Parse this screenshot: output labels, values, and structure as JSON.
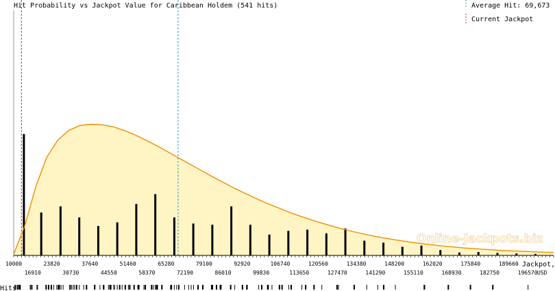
{
  "chart_data": {
    "type": "bar",
    "title": "Hit Probability vs Jackpot Value for Caribbean Holdem (541 hits)",
    "legend": {
      "average_label": "Average Hit: 69,673",
      "current_label": "Current Jackpot",
      "placement": "top-right"
    },
    "xlabel": "Jackpot,",
    "xlabel_unit": "USD",
    "rug_label": "Hits",
    "watermark": "Online-Jackpots.biz",
    "xlim": [
      10000,
      206000
    ],
    "ylim": [
      0,
      1
    ],
    "ticks_top": [
      "10000",
      "23820",
      "37640",
      "51460",
      "65280",
      "79100",
      "92920",
      "106740",
      "120560",
      "134380",
      "148200",
      "162020",
      "175840",
      "189660"
    ],
    "ticks_top_values": [
      10000,
      23820,
      37640,
      51460,
      65280,
      79100,
      92920,
      106740,
      120560,
      134380,
      148200,
      162020,
      175840,
      189660
    ],
    "ticks_bottom": [
      "16910",
      "30730",
      "44550",
      "58370",
      "72190",
      "86010",
      "99830",
      "113650",
      "127470",
      "141290",
      "155110",
      "168930",
      "182750",
      "196570"
    ],
    "ticks_bottom_values": [
      16910,
      30730,
      44550,
      58370,
      72190,
      86010,
      99830,
      113650,
      127470,
      141290,
      155110,
      168930,
      182750,
      196570
    ],
    "average_hit": 69673,
    "current_jackpot": 12800,
    "bars": {
      "x": [
        13700,
        20000,
        27000,
        33800,
        40700,
        47600,
        54500,
        61400,
        68300,
        75200,
        82100,
        89000,
        95900,
        102800,
        109700,
        116600,
        123500,
        130400,
        137300,
        144200,
        151100,
        158000,
        164900,
        171800,
        178700,
        185600,
        192500,
        199400
      ],
      "y": [
        0.495,
        0.175,
        0.2,
        0.155,
        0.12,
        0.135,
        0.21,
        0.25,
        0.155,
        0.13,
        0.125,
        0.2,
        0.125,
        0.085,
        0.1,
        0.105,
        0.09,
        0.11,
        0.06,
        0.052,
        0.035,
        0.04,
        0.022,
        0.012,
        0.014,
        0.01,
        0.008,
        0.006
      ]
    },
    "curve": {
      "x": [
        10000,
        14000,
        18000,
        22000,
        26000,
        30000,
        34000,
        38000,
        42000,
        46000,
        50000,
        54000,
        58000,
        62000,
        66000,
        70000,
        74000,
        78000,
        82000,
        86000,
        90000,
        94000,
        98000,
        102000,
        106000,
        110000,
        114000,
        118000,
        122000,
        126000,
        130000,
        134000,
        138000,
        142000,
        146000,
        150000,
        154000,
        158000,
        162000,
        166000,
        170000,
        174000,
        178000,
        182000,
        186000,
        190000,
        194000,
        198000,
        202000,
        206000
      ],
      "y": [
        0.005,
        0.12,
        0.28,
        0.4,
        0.47,
        0.51,
        0.53,
        0.535,
        0.533,
        0.525,
        0.51,
        0.492,
        0.47,
        0.447,
        0.422,
        0.397,
        0.372,
        0.347,
        0.322,
        0.298,
        0.275,
        0.253,
        0.232,
        0.212,
        0.194,
        0.176,
        0.16,
        0.145,
        0.131,
        0.118,
        0.106,
        0.095,
        0.085,
        0.076,
        0.068,
        0.061,
        0.054,
        0.048,
        0.043,
        0.038,
        0.034,
        0.03,
        0.027,
        0.024,
        0.021,
        0.019,
        0.017,
        0.015,
        0.013,
        0.012
      ]
    },
    "rug_density": [
      6,
      4,
      3,
      5,
      4,
      5,
      3,
      4,
      5,
      4,
      4,
      3,
      4,
      4,
      3,
      4,
      3,
      3,
      3,
      3,
      2,
      3,
      2,
      3,
      2,
      2,
      2,
      1,
      1,
      1,
      1,
      1,
      1,
      1,
      1,
      1,
      0,
      1,
      1,
      0,
      1,
      0,
      1,
      0,
      1,
      0,
      0,
      1,
      0,
      0
    ],
    "colors": {
      "curve": "#f08c00",
      "fill": "#fff5c4",
      "bars": "#000000",
      "average_line": "#3399cc",
      "current_line": "#b03030",
      "axis": "#999999"
    },
    "grid": false
  }
}
